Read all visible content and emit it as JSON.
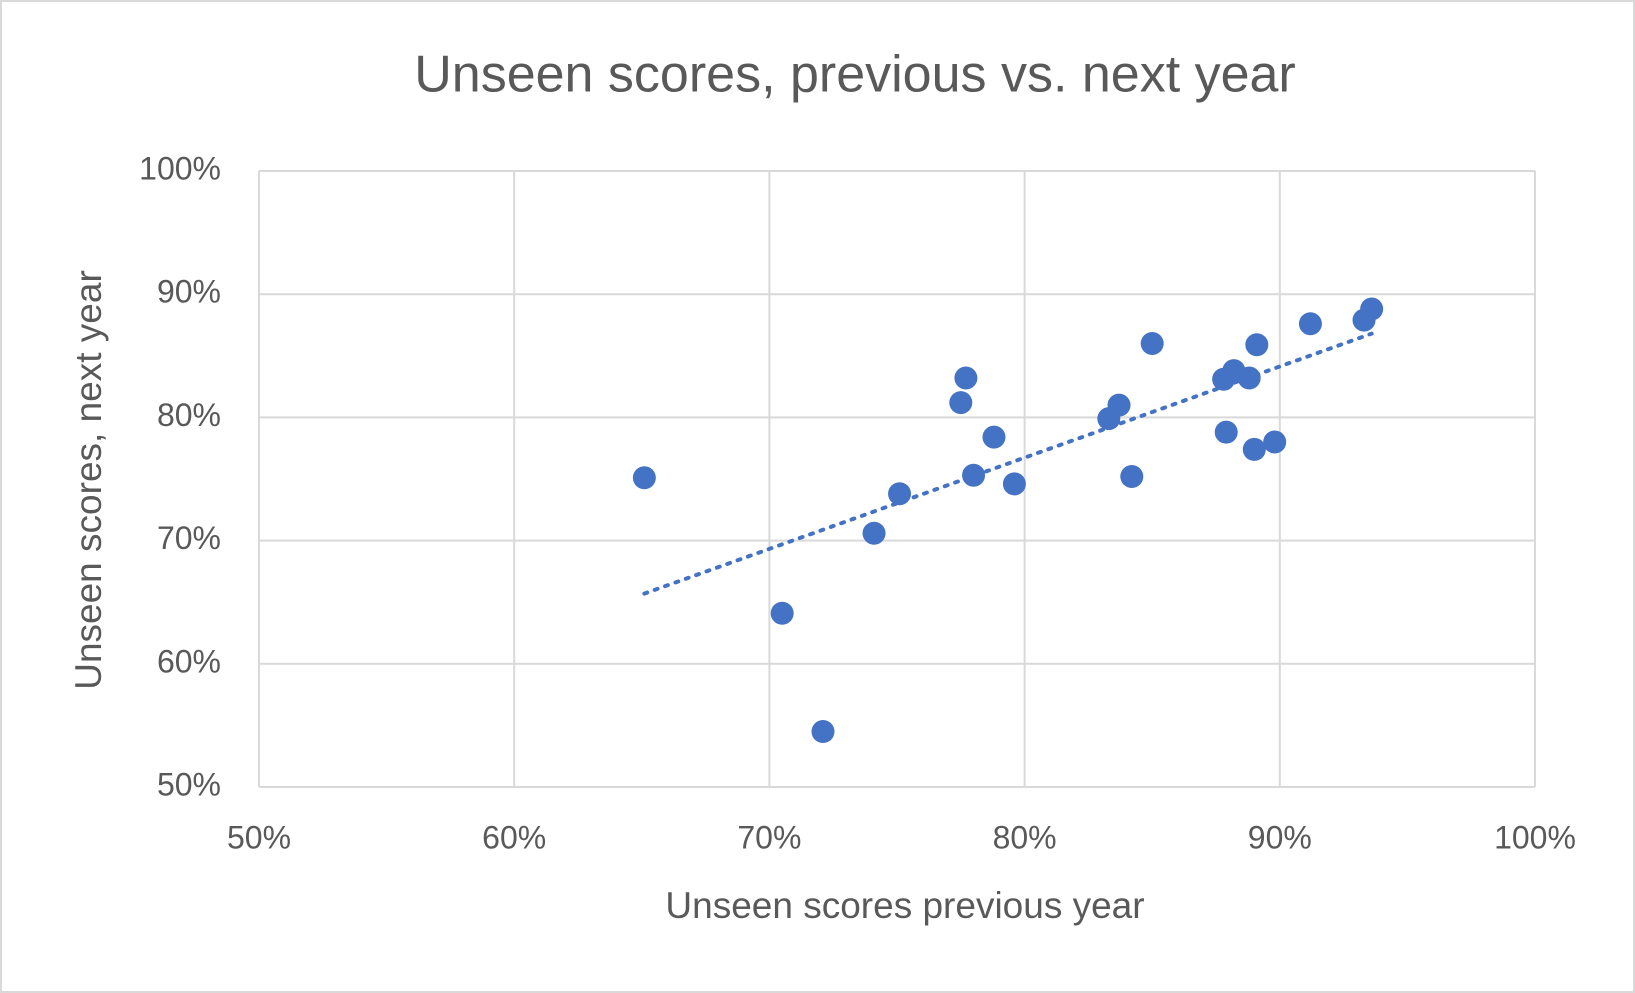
{
  "chart_data": {
    "type": "scatter",
    "title": "Unseen scores, previous vs. next year",
    "x_label": "Unseen scores previous year",
    "y_label": "Unseen scores, next year",
    "color": "#4472c4",
    "grid": true,
    "xlim": [
      50,
      100
    ],
    "ylim": [
      50,
      100
    ],
    "xticks": [
      {
        "value": 50,
        "label": "50%"
      },
      {
        "value": 60,
        "label": "60%"
      },
      {
        "value": 70,
        "label": "70%"
      },
      {
        "value": 80,
        "label": "80%"
      },
      {
        "value": 90,
        "label": "90%"
      },
      {
        "value": 100,
        "label": "100%"
      }
    ],
    "yticks": [
      {
        "value": 50,
        "label": "50%"
      },
      {
        "value": 60,
        "label": "60%"
      },
      {
        "value": 70,
        "label": "70%"
      },
      {
        "value": 80,
        "label": "80%"
      },
      {
        "value": 90,
        "label": "90%"
      },
      {
        "value": 100,
        "label": "100%"
      }
    ],
    "x": [
      65.1,
      70.5,
      72.1,
      74.1,
      75.1,
      77.5,
      77.7,
      78.0,
      78.8,
      79.6,
      83.3,
      83.7,
      84.2,
      85.0,
      87.8,
      88.2,
      87.9,
      88.8,
      89.0,
      89.1,
      89.8,
      91.2,
      93.3,
      93.6
    ],
    "values": [
      75.1,
      64.1,
      54.5,
      70.6,
      73.8,
      81.2,
      83.2,
      75.3,
      78.4,
      74.6,
      79.9,
      81.0,
      75.2,
      86.0,
      83.1,
      83.8,
      78.8,
      83.2,
      77.4,
      85.9,
      78.0,
      87.6,
      87.9,
      88.8
    ],
    "trendline": {
      "style": "dotted",
      "x": [
        65.1,
        93.6
      ],
      "values": [
        65.7,
        86.8
      ]
    }
  }
}
